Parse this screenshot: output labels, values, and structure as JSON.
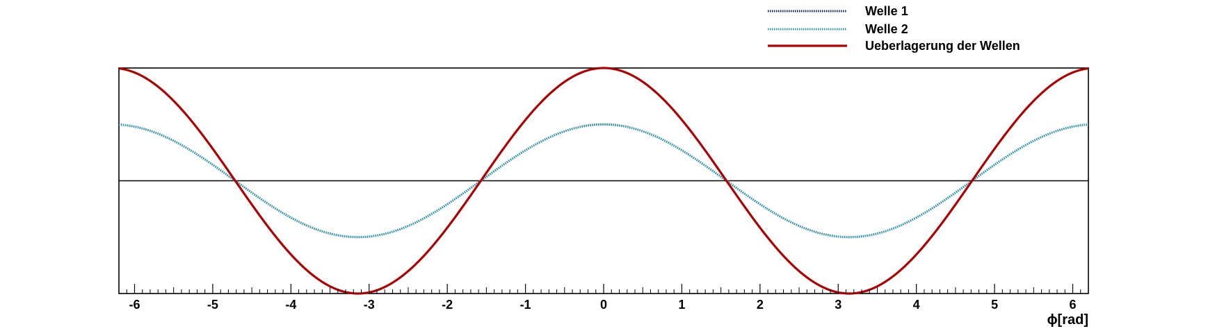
{
  "chart_data": {
    "type": "line",
    "xlabel": "ϕ[rad]",
    "ylabel": "",
    "title": "",
    "xlim": [
      -6.2,
      6.2
    ],
    "ylim": [
      -2,
      2
    ],
    "x_ticks": [
      -6,
      -5,
      -4,
      -3,
      -2,
      -1,
      0,
      1,
      2,
      3,
      4,
      5,
      6
    ],
    "y_ticks_visible": false,
    "zero_line": true,
    "grid": false,
    "legend_position": "top-right, above plot area",
    "sample_points": 400,
    "series": [
      {
        "name": "Welle 1",
        "function": "cos(x)",
        "amplitude": 1,
        "phase": 0,
        "style": "dotted",
        "color": "#0d1f6b"
      },
      {
        "name": "Welle 2",
        "function": "cos(x)",
        "amplitude": 1,
        "phase": 0,
        "style": "dotted",
        "color": "#2aa1b5"
      },
      {
        "name": "Ueberlagerung der Wellen",
        "function": "2*cos(x)",
        "amplitude": 2,
        "phase": 0,
        "style": "solid",
        "color": "#b00000"
      }
    ]
  }
}
